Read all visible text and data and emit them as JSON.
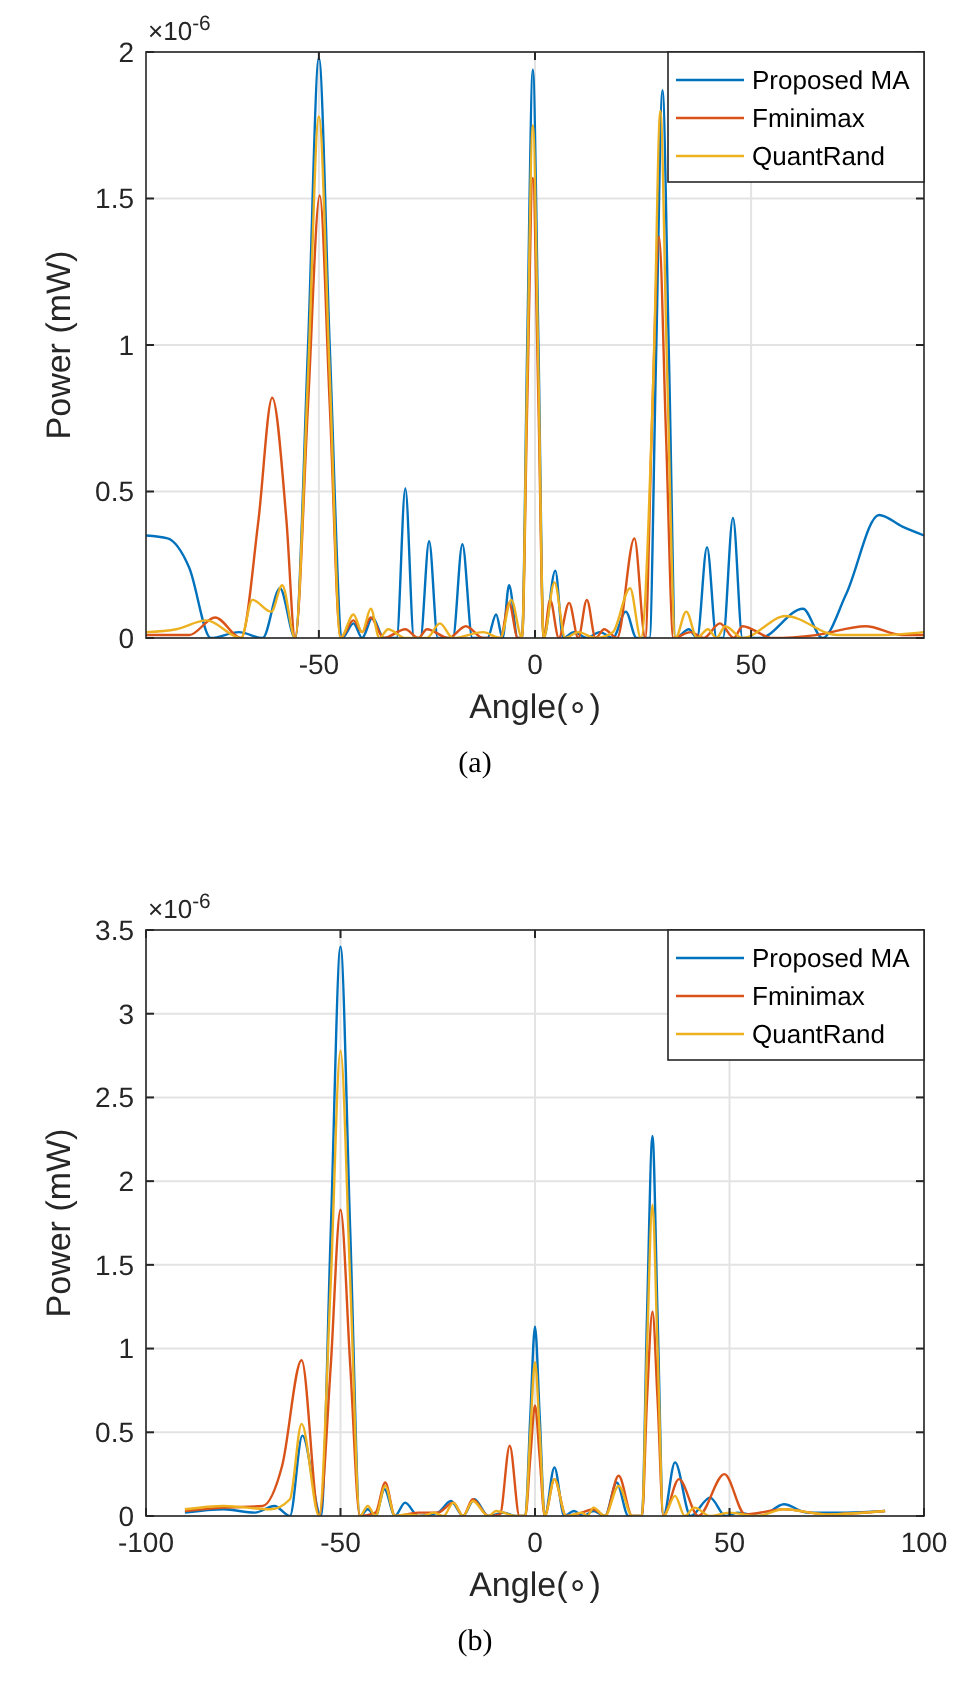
{
  "chart_data": [
    {
      "type": "line",
      "xlabel": "Angle(∘)",
      "ylabel": "Power (mW)",
      "xlim": [
        -90,
        90
      ],
      "xticks": [
        -50,
        0,
        50
      ],
      "ylim": [
        0,
        2
      ],
      "yticks": [
        0,
        0.5,
        1,
        1.5,
        2
      ],
      "grid": true,
      "legend": "top right",
      "annotations": [
        "×10$^{-6}$",
        "(a)"
      ],
      "series": [
        {
          "name": "Proposed MA",
          "color": "#0072bd",
          "x": [
            -90,
            -85,
            -80,
            -75,
            -68.5,
            -63,
            -59,
            -55.5,
            -52.5,
            -50,
            -47.5,
            -44.6,
            -42,
            -40,
            -37.6,
            -35,
            -32,
            -30,
            -28,
            -26.5,
            -24.5,
            -22.5,
            -19,
            -16.8,
            -14.5,
            -11,
            -9,
            -7.5,
            -6,
            -4,
            -3,
            -1.8,
            -0.5,
            0.8,
            2,
            4.7,
            6.5,
            9,
            12,
            15,
            18,
            21,
            23.5,
            26.5,
            28,
            29.5,
            31,
            32.5,
            35.6,
            37.5,
            39.8,
            42,
            43.5,
            45.8,
            48,
            52,
            62,
            66.5,
            72,
            79.6,
            85,
            90
          ],
          "values": [
            0.35,
            0.34,
            0.24,
            0,
            0.02,
            0,
            0.17,
            0,
            1.0,
            1.98,
            1.0,
            0,
            0.05,
            0,
            0.07,
            0,
            0,
            0.51,
            0,
            0,
            0.33,
            0,
            0,
            0.32,
            0,
            0,
            0.08,
            0,
            0.18,
            0,
            0,
            1.0,
            1.94,
            1.0,
            0,
            0.23,
            0,
            0.02,
            0,
            0.02,
            0,
            0.09,
            0,
            0,
            0.95,
            1.87,
            0.95,
            0,
            0.03,
            0,
            0.31,
            0,
            0,
            0.41,
            0,
            0,
            0.1,
            0,
            0.15,
            0.42,
            0.38,
            0.35
          ]
        },
        {
          "name": "Fminimax",
          "color": "#d95319",
          "x": [
            -90,
            -80,
            -74,
            -68,
            -64,
            -60.8,
            -57.5,
            -55.5,
            -52.5,
            -49.8,
            -47.5,
            -45,
            -42,
            -40,
            -38,
            -35,
            -30,
            -27,
            -25,
            -20,
            -16,
            -12,
            -8,
            -6,
            -4,
            -3,
            -1.8,
            -0.5,
            0.8,
            2,
            3.5,
            5.5,
            7.9,
            10,
            12,
            14,
            16,
            19,
            23,
            25.5,
            27,
            28.7,
            30.3,
            32,
            36,
            39,
            42.8,
            46,
            48,
            55,
            65,
            76.5,
            85,
            90
          ],
          "values": [
            0.01,
            0.01,
            0.07,
            0,
            0.4,
            0.82,
            0.4,
            0,
            0.8,
            1.51,
            0.8,
            0,
            0.06,
            0.02,
            0.07,
            0,
            0.03,
            0,
            0.03,
            0,
            0.04,
            0,
            0,
            0.12,
            0,
            0,
            0.8,
            1.57,
            0.8,
            0,
            0.13,
            0,
            0.12,
            0,
            0.13,
            0,
            0.03,
            0,
            0.34,
            0,
            0.7,
            1.37,
            0.7,
            0,
            0.02,
            0,
            0.05,
            0,
            0.04,
            0,
            0.01,
            0.04,
            0.01,
            0.01
          ]
        },
        {
          "name": "QuantRand",
          "color": "#edb120",
          "x": [
            -90,
            -83,
            -76,
            -68,
            -65.4,
            -61,
            -58.5,
            -55.5,
            -52.5,
            -50,
            -47.5,
            -45,
            -42,
            -40,
            -38,
            -36,
            -34,
            -30,
            -25,
            -22,
            -19,
            -12,
            -8,
            -5.5,
            -3,
            -1.8,
            -0.5,
            0.8,
            2,
            4.5,
            7,
            10,
            14,
            18,
            22,
            24.5,
            27.5,
            29,
            30.5,
            32.5,
            35,
            37.5,
            40,
            42,
            44,
            48,
            58,
            70,
            80,
            90
          ],
          "values": [
            0.02,
            0.03,
            0.06,
            0,
            0.13,
            0.09,
            0.18,
            0,
            0.9,
            1.78,
            0.9,
            0,
            0.08,
            0.02,
            0.1,
            0,
            0.03,
            0,
            0,
            0.05,
            0,
            0.02,
            0,
            0.13,
            0,
            0.9,
            1.75,
            0.9,
            0,
            0.19,
            0,
            0.02,
            0,
            0.02,
            0.17,
            0,
            0.95,
            1.8,
            0.95,
            0,
            0.09,
            0,
            0.03,
            0,
            0.04,
            0,
            0.075,
            0.01,
            0.01,
            0.02
          ]
        }
      ]
    },
    {
      "type": "line",
      "xlabel": "Angle(∘)",
      "ylabel": "Power (mW)",
      "xlim": [
        -100,
        100
      ],
      "xticks": [
        -100,
        -50,
        0,
        50,
        100
      ],
      "ylim": [
        0,
        3.5
      ],
      "yticks": [
        0,
        0.5,
        1,
        1.5,
        2,
        2.5,
        3,
        3.5
      ],
      "grid": true,
      "legend": "top right",
      "annotations": [
        "×10$^{-6}$",
        "(b)"
      ],
      "series": [
        {
          "name": "Proposed MA",
          "color": "#0072bd",
          "x": [
            -90,
            -80,
            -72,
            -67,
            -63,
            -59.8,
            -55,
            -52.5,
            -50,
            -47.5,
            -45,
            -43,
            -41,
            -38.7,
            -36,
            -33.4,
            -30,
            -25,
            -21.6,
            -18.5,
            -15.6,
            -12,
            -8,
            -5,
            -2.5,
            -1.2,
            0,
            1.2,
            2.5,
            5,
            7.5,
            10,
            12.5,
            15,
            18,
            21,
            24,
            27.5,
            28.8,
            30.2,
            31.5,
            33,
            36,
            40,
            45,
            49,
            52,
            58,
            64,
            70,
            80,
            90
          ],
          "values": [
            0.02,
            0.04,
            0.02,
            0.06,
            0,
            0.48,
            0,
            1.7,
            3.4,
            1.7,
            0,
            0.04,
            0,
            0.16,
            0,
            0.08,
            0,
            0.02,
            0.09,
            0,
            0.1,
            0,
            0.02,
            0,
            0,
            0.6,
            1.13,
            0.6,
            0,
            0.29,
            0,
            0.03,
            0,
            0.03,
            0,
            0.2,
            0,
            0,
            1.2,
            2.27,
            1.2,
            0,
            0.32,
            0,
            0.11,
            0,
            0.02,
            0,
            0.07,
            0.02,
            0.02,
            0.03
          ]
        },
        {
          "name": "Fminimax",
          "color": "#d95319",
          "x": [
            -90,
            -80,
            -70,
            -65,
            -60,
            -55.5,
            -52.5,
            -50,
            -47.5,
            -45,
            -41,
            -38.5,
            -36,
            -30,
            -25,
            -21,
            -18.5,
            -16,
            -12,
            -9,
            -6.5,
            -4,
            -2.5,
            -1.2,
            0,
            1.2,
            2.5,
            5,
            8,
            12,
            15,
            18,
            21.5,
            25,
            27.5,
            28.8,
            30.2,
            31.5,
            33,
            37,
            42,
            48.7,
            54,
            64,
            75,
            90
          ],
          "values": [
            0.03,
            0.05,
            0.06,
            0.3,
            0.93,
            0,
            0.9,
            1.83,
            0.9,
            0,
            0.02,
            0.2,
            0,
            0.02,
            0.02,
            0.08,
            0,
            0.1,
            0,
            0.01,
            0.42,
            0,
            0,
            0.35,
            0.66,
            0.35,
            0,
            0.22,
            0,
            0.02,
            0.04,
            0,
            0.24,
            0,
            0,
            0.7,
            1.22,
            0.7,
            0,
            0.22,
            0,
            0.25,
            0.01,
            0.04,
            0.01,
            0.03
          ]
        },
        {
          "name": "QuantRand",
          "color": "#edb120",
          "x": [
            -90,
            -80,
            -68,
            -63,
            -60,
            -55.5,
            -52.5,
            -50,
            -47.5,
            -45,
            -43,
            -41,
            -38.5,
            -36,
            -33,
            -29,
            -26,
            -23.5,
            -21,
            -18.5,
            -16,
            -12,
            -10,
            -5,
            -2.5,
            -1.2,
            0,
            1.2,
            2.5,
            5,
            8,
            12,
            13.5,
            15,
            18,
            21.5,
            25,
            27.5,
            28.8,
            30.2,
            31.5,
            33,
            36,
            38.5,
            41,
            45,
            50,
            57,
            64,
            75,
            90
          ],
          "values": [
            0.04,
            0.06,
            0.04,
            0.1,
            0.55,
            0,
            1.4,
            2.78,
            1.4,
            0,
            0.06,
            0,
            0.18,
            0,
            0.01,
            0,
            0.02,
            0,
            0.08,
            0,
            0.09,
            0,
            0.03,
            0,
            0,
            0.5,
            0.92,
            0.5,
            0,
            0.22,
            0,
            0.02,
            0,
            0.05,
            0,
            0.18,
            0,
            0,
            1.0,
            1.86,
            1.0,
            0,
            0.12,
            0,
            0.05,
            0,
            0.02,
            0,
            0.04,
            0.01,
            0.03
          ]
        }
      ]
    }
  ]
}
